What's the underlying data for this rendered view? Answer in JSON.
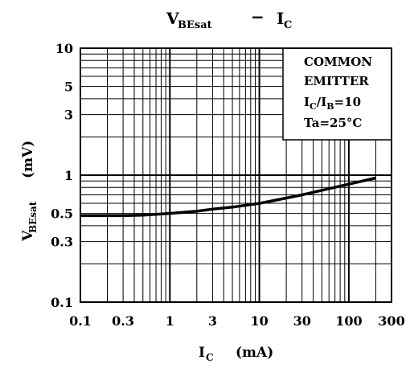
{
  "chart_data": {
    "type": "line",
    "title": {
      "left_main": "V",
      "left_sub": "BEsat",
      "separator": "−",
      "right_main": "I",
      "right_sub": "C"
    },
    "xlabel": {
      "main": "I",
      "sub": "C",
      "unit": "(mA)"
    },
    "ylabel": {
      "main": "V",
      "sub": "BEsat",
      "unit": "(mV)"
    },
    "x_scale": "log",
    "y_scale": "log",
    "xlim": [
      0.1,
      300
    ],
    "ylim": [
      0.1,
      10
    ],
    "x_ticks": [
      {
        "value": 0.1,
        "label": "0.1"
      },
      {
        "value": 0.3,
        "label": "0.3"
      },
      {
        "value": 1,
        "label": "1"
      },
      {
        "value": 3,
        "label": "3"
      },
      {
        "value": 10,
        "label": "10"
      },
      {
        "value": 30,
        "label": "30"
      },
      {
        "value": 100,
        "label": "100"
      },
      {
        "value": 300,
        "label": "300"
      }
    ],
    "y_ticks": [
      {
        "value": 0.1,
        "label": "0.1"
      },
      {
        "value": 0.3,
        "label": "0.3"
      },
      {
        "value": 0.5,
        "label": "0.5"
      },
      {
        "value": 1,
        "label": "1"
      },
      {
        "value": 3,
        "label": "3"
      },
      {
        "value": 5,
        "label": "5"
      },
      {
        "value": 10,
        "label": "10"
      }
    ],
    "grid": true,
    "legend_box": {
      "position": "top-right",
      "lines": [
        {
          "main": "COMMON"
        },
        {
          "main": "EMITTER"
        },
        {
          "main": "I",
          "sub": "C",
          "mid": "/I",
          "sub2": "B",
          "tail": "=10"
        },
        {
          "main": "Ta=25°C"
        }
      ]
    },
    "series": [
      {
        "x": [
          0.1,
          0.2,
          0.3,
          0.5,
          1,
          2,
          3,
          5,
          10,
          20,
          30,
          50,
          100,
          200
        ],
        "y": [
          0.48,
          0.48,
          0.48,
          0.485,
          0.5,
          0.52,
          0.54,
          0.56,
          0.6,
          0.66,
          0.7,
          0.76,
          0.85,
          0.95
        ]
      }
    ]
  }
}
